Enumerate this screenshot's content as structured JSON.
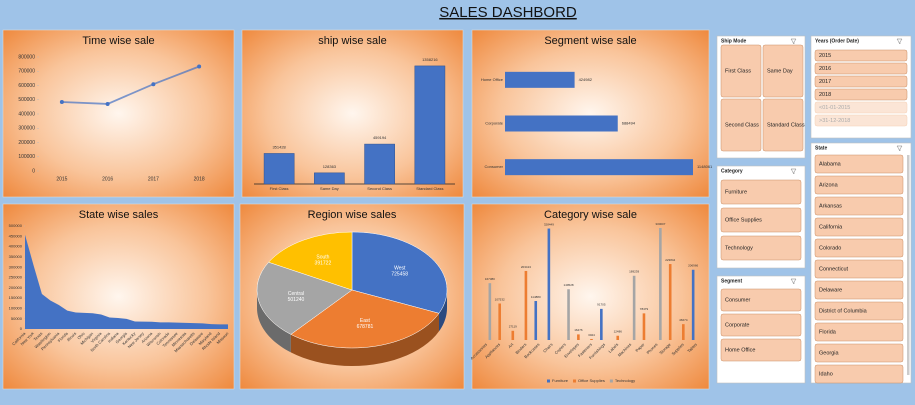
{
  "title": "SALES DASHBORD",
  "chart_data": [
    {
      "type": "line",
      "title": "Time wise sale",
      "categories": [
        "2015",
        "2016",
        "2017",
        "2018"
      ],
      "values": [
        484247,
        470533,
        609206,
        733215
      ],
      "color": "#4472c4",
      "ylim": [
        0,
        800000
      ],
      "yticks": [
        0,
        100000,
        200000,
        300000,
        400000,
        500000,
        600000,
        700000,
        800000
      ]
    },
    {
      "type": "bar",
      "title": "ship wise sale",
      "categories": [
        "First Class",
        "Same Day",
        "Second Class",
        "Standard Class"
      ],
      "values": [
        351428,
        128363,
        459194,
        1358216
      ],
      "color": "#4472c4"
    },
    {
      "type": "hbar",
      "title": "Segment wise sale",
      "categories": [
        "Home Office",
        "Corporate",
        "Consumer"
      ],
      "values": [
        424982,
        688494,
        1148061
      ],
      "color": "#4472c4"
    },
    {
      "type": "area",
      "title": "State wise  sales",
      "categories": [
        "California",
        "New York",
        "Texas",
        "Washington",
        "Pennsylvania",
        "Florida",
        "Illinois",
        "Ohio",
        "Michigan",
        "Virginia",
        "North Carolina",
        "Indiana",
        "Georgia",
        "Kentucky",
        "New Jersey",
        "Arizona",
        "Wisconsin",
        "Colorado",
        "Tennessee",
        "Minnesota",
        "Massachusetts",
        "Delaware",
        "Maryland",
        "Rhode Island",
        "Missouri"
      ],
      "values": [
        457688,
        310876,
        170188,
        138641,
        116512,
        89474,
        80166,
        78258,
        76270,
        70637,
        55603,
        53555,
        49096,
        36592,
        35764,
        35282,
        32115,
        32108,
        30662,
        29863,
        28634,
        27451,
        23706,
        22628,
        22205
      ],
      "color": "#4472c4",
      "ylim": [
        0,
        500000
      ],
      "yticks": [
        0,
        50000,
        100000,
        150000,
        200000,
        250000,
        300000,
        350000,
        400000,
        450000,
        500000
      ]
    },
    {
      "type": "pie",
      "title": "Region wise sales",
      "categories": [
        "West",
        "East",
        "Central",
        "South"
      ],
      "values": [
        725458,
        678781,
        501240,
        391722
      ],
      "colors": [
        "#4472c4",
        "#ed7d31",
        "#a5a5a5",
        "#ffc000"
      ]
    },
    {
      "type": "grouped-bar",
      "title": "Category wise sale",
      "categories": [
        "Accessories",
        "Appliances",
        "Art",
        "Binders",
        "Bookcases",
        "Chairs",
        "Copiers",
        "Envelopes",
        "Fasteners",
        "Furnishings",
        "Labels",
        "Machines",
        "Paper",
        "Phones",
        "Storage",
        "Supplies",
        "Tables"
      ],
      "series": [
        {
          "name": "Furniture",
          "color": "#4472c4",
          "values": [
            null,
            null,
            null,
            null,
            114880,
            328449,
            null,
            null,
            null,
            91705,
            null,
            null,
            null,
            null,
            null,
            null,
            206966
          ]
        },
        {
          "name": "Office Supplies",
          "color": "#ed7d31",
          "values": [
            null,
            107532,
            27119,
            203413,
            null,
            null,
            null,
            16476,
            3024,
            null,
            12486,
            null,
            78479,
            null,
            223844,
            46674,
            null
          ]
        },
        {
          "name": "Technology",
          "color": "#a5a5a5",
          "values": [
            167380,
            null,
            null,
            null,
            null,
            null,
            149528,
            null,
            null,
            null,
            null,
            189239,
            null,
            330007,
            null,
            null,
            null
          ]
        }
      ]
    }
  ],
  "slicers": [
    {
      "title": "Ship Mode",
      "items": [
        "First Class",
        "Same Day",
        "Second Class",
        "Standard Class"
      ]
    },
    {
      "title": "Years (Order Date)",
      "items": [
        "2015",
        "2016",
        "2017",
        "2018",
        "<01-01-2015",
        ">31-12-2018"
      ]
    },
    {
      "title": "State",
      "items": [
        "Alabama",
        "Arizona",
        "Arkansas",
        "California",
        "Colorado",
        "Connecticut",
        "Delaware",
        "District of Columbia",
        "Florida",
        "Georgia",
        "Idaho"
      ]
    },
    {
      "title": "Category",
      "items": [
        "Furniture",
        "Office Supplies",
        "Technology"
      ]
    },
    {
      "title": "Segment",
      "items": [
        "Consumer",
        "Corporate",
        "Home Office"
      ]
    }
  ]
}
